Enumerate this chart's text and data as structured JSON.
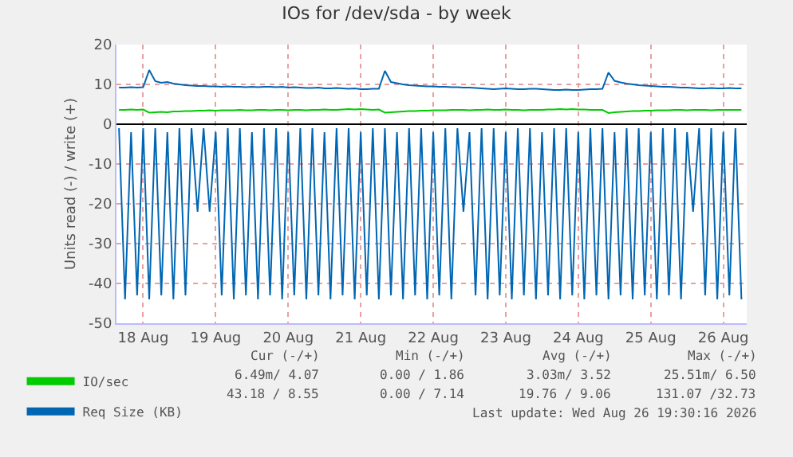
{
  "chart_data": {
    "type": "line",
    "title": "IOs for /dev/sda - by week",
    "ylabel": "Units read (-) / write (+)",
    "x": [
      "2026-08-17T16:00",
      "2026-08-17T18:00",
      "2026-08-17T20:00",
      "2026-08-17T22:00",
      "2026-08-18T00:00",
      "2026-08-18T02:00",
      "2026-08-18T04:00",
      "2026-08-18T06:00",
      "2026-08-18T08:00",
      "2026-08-18T10:00",
      "2026-08-18T12:00",
      "2026-08-18T14:00",
      "2026-08-18T16:00",
      "2026-08-18T18:00",
      "2026-08-18T20:00",
      "2026-08-18T22:00",
      "2026-08-19T00:00",
      "2026-08-19T02:00",
      "2026-08-19T04:00",
      "2026-08-19T06:00",
      "2026-08-19T08:00",
      "2026-08-19T10:00",
      "2026-08-19T12:00",
      "2026-08-19T14:00",
      "2026-08-19T16:00",
      "2026-08-19T18:00",
      "2026-08-19T20:00",
      "2026-08-19T22:00",
      "2026-08-20T00:00",
      "2026-08-20T02:00",
      "2026-08-20T04:00",
      "2026-08-20T06:00",
      "2026-08-20T08:00",
      "2026-08-20T10:00",
      "2026-08-20T12:00",
      "2026-08-20T14:00",
      "2026-08-20T16:00",
      "2026-08-20T18:00",
      "2026-08-20T20:00",
      "2026-08-20T22:00",
      "2026-08-21T00:00",
      "2026-08-21T02:00",
      "2026-08-21T04:00",
      "2026-08-21T06:00",
      "2026-08-21T08:00",
      "2026-08-21T10:00",
      "2026-08-21T12:00",
      "2026-08-21T14:00",
      "2026-08-21T16:00",
      "2026-08-21T18:00",
      "2026-08-21T20:00",
      "2026-08-21T22:00",
      "2026-08-22T00:00",
      "2026-08-22T02:00",
      "2026-08-22T04:00",
      "2026-08-22T06:00",
      "2026-08-22T08:00",
      "2026-08-22T10:00",
      "2026-08-22T12:00",
      "2026-08-22T14:00",
      "2026-08-22T16:00",
      "2026-08-22T18:00",
      "2026-08-22T20:00",
      "2026-08-22T22:00",
      "2026-08-23T00:00",
      "2026-08-23T02:00",
      "2026-08-23T04:00",
      "2026-08-23T06:00",
      "2026-08-23T08:00",
      "2026-08-23T10:00",
      "2026-08-23T12:00",
      "2026-08-23T14:00",
      "2026-08-23T16:00",
      "2026-08-23T18:00",
      "2026-08-23T20:00",
      "2026-08-23T22:00",
      "2026-08-24T00:00",
      "2026-08-24T02:00",
      "2026-08-24T04:00",
      "2026-08-24T06:00",
      "2026-08-24T08:00",
      "2026-08-24T10:00",
      "2026-08-24T12:00",
      "2026-08-24T14:00",
      "2026-08-24T16:00",
      "2026-08-24T18:00",
      "2026-08-24T20:00",
      "2026-08-24T22:00",
      "2026-08-25T00:00",
      "2026-08-25T02:00",
      "2026-08-25T04:00",
      "2026-08-25T06:00",
      "2026-08-25T08:00",
      "2026-08-25T10:00",
      "2026-08-25T12:00",
      "2026-08-25T14:00",
      "2026-08-25T16:00",
      "2026-08-25T18:00",
      "2026-08-25T20:00",
      "2026-08-25T22:00",
      "2026-08-26T00:00",
      "2026-08-26T02:00",
      "2026-08-26T04:00",
      "2026-08-26T06:00"
    ],
    "series": [
      {
        "name": "IO/sec",
        "color": "#00cc00",
        "values": [
          3.6,
          3.6,
          3.7,
          3.6,
          3.7,
          2.9,
          3.0,
          3.1,
          3.0,
          3.2,
          3.2,
          3.3,
          3.3,
          3.4,
          3.4,
          3.5,
          3.4,
          3.5,
          3.5,
          3.5,
          3.6,
          3.5,
          3.5,
          3.6,
          3.6,
          3.5,
          3.6,
          3.6,
          3.5,
          3.6,
          3.6,
          3.5,
          3.6,
          3.6,
          3.7,
          3.6,
          3.6,
          3.7,
          3.8,
          3.7,
          3.8,
          3.7,
          3.6,
          3.7,
          2.9,
          3.0,
          3.1,
          3.2,
          3.3,
          3.3,
          3.4,
          3.4,
          3.5,
          3.5,
          3.5,
          3.6,
          3.6,
          3.6,
          3.5,
          3.6,
          3.6,
          3.7,
          3.6,
          3.6,
          3.7,
          3.6,
          3.6,
          3.5,
          3.6,
          3.6,
          3.6,
          3.7,
          3.7,
          3.8,
          3.7,
          3.8,
          3.7,
          3.7,
          3.6,
          3.6,
          3.6,
          2.8,
          3.0,
          3.1,
          3.2,
          3.3,
          3.3,
          3.4,
          3.4,
          3.5,
          3.5,
          3.5,
          3.6,
          3.6,
          3.5,
          3.6,
          3.6,
          3.6,
          3.5,
          3.6,
          3.6,
          3.6,
          3.6,
          3.6
        ]
      },
      {
        "name": "Req Size (KB)",
        "color": "#0066b3",
        "values": [
          9.2,
          9.2,
          9.3,
          9.2,
          9.3,
          13.6,
          10.8,
          10.4,
          10.6,
          10.2,
          10.0,
          9.8,
          9.7,
          9.6,
          9.6,
          9.5,
          9.5,
          9.4,
          9.5,
          9.4,
          9.4,
          9.3,
          9.4,
          9.3,
          9.4,
          9.4,
          9.3,
          9.4,
          9.2,
          9.3,
          9.2,
          9.1,
          9.1,
          9.2,
          9.0,
          9.0,
          9.1,
          9.0,
          8.9,
          9.0,
          8.8,
          8.8,
          8.9,
          8.9,
          13.4,
          10.6,
          10.3,
          10.0,
          9.8,
          9.7,
          9.6,
          9.5,
          9.5,
          9.4,
          9.4,
          9.3,
          9.3,
          9.2,
          9.2,
          9.1,
          9.0,
          8.9,
          8.8,
          8.9,
          9.0,
          8.9,
          8.8,
          8.8,
          8.9,
          8.9,
          8.8,
          8.7,
          8.6,
          8.6,
          8.7,
          8.6,
          8.6,
          8.7,
          8.8,
          8.8,
          8.9,
          13.0,
          10.9,
          10.5,
          10.2,
          10.0,
          9.8,
          9.7,
          9.6,
          9.5,
          9.4,
          9.4,
          9.3,
          9.2,
          9.2,
          9.1,
          9.0,
          9.0,
          9.1,
          9.0,
          9.0,
          9.1,
          9.0,
          9.0
        ]
      },
      {
        "color": "#0066b3",
        "values": [
          -1,
          -44,
          -2,
          -43,
          -1,
          -44,
          -1,
          -43,
          -2,
          -44,
          -1,
          -43,
          -1,
          -22,
          -1,
          -22,
          -2,
          -43,
          -1,
          -44,
          -1,
          -43,
          -2,
          -44,
          -1,
          -43,
          -1,
          -44,
          -2,
          -43,
          -1,
          -44,
          -1,
          -43,
          -2,
          -44,
          -1,
          -43,
          -1,
          -44,
          -2,
          -43,
          -1,
          -44,
          -1,
          -43,
          -2,
          -44,
          -1,
          -43,
          -1,
          -44,
          -2,
          -43,
          -1,
          -44,
          -1,
          -22,
          -2,
          -43,
          -1,
          -44,
          -1,
          -43,
          -2,
          -44,
          -1,
          -43,
          -1,
          -44,
          -2,
          -43,
          -1,
          -44,
          -1,
          -43,
          -2,
          -44,
          -1,
          -43,
          -1,
          -44,
          -2,
          -43,
          -1,
          -44,
          -1,
          -43,
          -2,
          -44,
          -1,
          -43,
          -1,
          -44,
          -2,
          -22,
          -1,
          -43,
          -1,
          -44,
          -2,
          -43,
          -1,
          -44
        ]
      }
    ],
    "xlim": [
      "2026-08-17T15:10",
      "2026-08-26T07:45"
    ],
    "xticks": [
      {
        "value": "2026-08-18",
        "label": "18 Aug"
      },
      {
        "value": "2026-08-19",
        "label": "19 Aug"
      },
      {
        "value": "2026-08-20",
        "label": "20 Aug"
      },
      {
        "value": "2026-08-21",
        "label": "21 Aug"
      },
      {
        "value": "2026-08-22",
        "label": "22 Aug"
      },
      {
        "value": "2026-08-23",
        "label": "23 Aug"
      },
      {
        "value": "2026-08-24",
        "label": "24 Aug"
      },
      {
        "value": "2026-08-25",
        "label": "25 Aug"
      },
      {
        "value": "2026-08-26",
        "label": "26 Aug"
      }
    ],
    "ylim": [
      -50,
      20
    ],
    "yticks": [
      -50,
      -40,
      -30,
      -20,
      -10,
      0,
      10,
      20
    ],
    "grid": true,
    "legend": "bottom left",
    "marker": "none",
    "line_style": "solid",
    "annotations": [
      "Cur (-/+)",
      "Min (-/+)",
      "Avg (-/+)",
      "Max (-/+)",
      "6.49m/ 4.07",
      "0.00 / 1.86",
      "3.03m/ 3.52",
      "25.51m/ 6.50",
      "43.18 / 8.55",
      "0.00 / 7.14",
      "19.76 / 9.06",
      "131.07 /32.73",
      "Last update: Wed Aug 26 19:30:16 2026"
    ]
  }
}
